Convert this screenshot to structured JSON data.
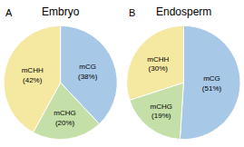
{
  "chart_data": [
    {
      "type": "pie",
      "title": "Embryo",
      "annotations": [
        "A"
      ],
      "categories": [
        "mCG",
        "mCHG",
        "mCHH"
      ],
      "values": [
        38,
        20,
        42
      ],
      "value_labels": [
        "(38%)",
        "(20%)",
        "(42%)"
      ],
      "data_labels": true,
      "colors": [
        "#a8c8e8",
        "#c5dfa8",
        "#f5e8a0"
      ]
    },
    {
      "type": "pie",
      "title": "Endosperm",
      "annotations": [
        "B"
      ],
      "categories": [
        "mCG",
        "mCHG",
        "mCHH"
      ],
      "values": [
        51,
        19,
        30
      ],
      "value_labels": [
        "(51%)",
        "(19%)",
        "(30%)"
      ],
      "data_labels": true,
      "colors": [
        "#a8c8e8",
        "#c5dfa8",
        "#f5e8a0"
      ]
    }
  ]
}
